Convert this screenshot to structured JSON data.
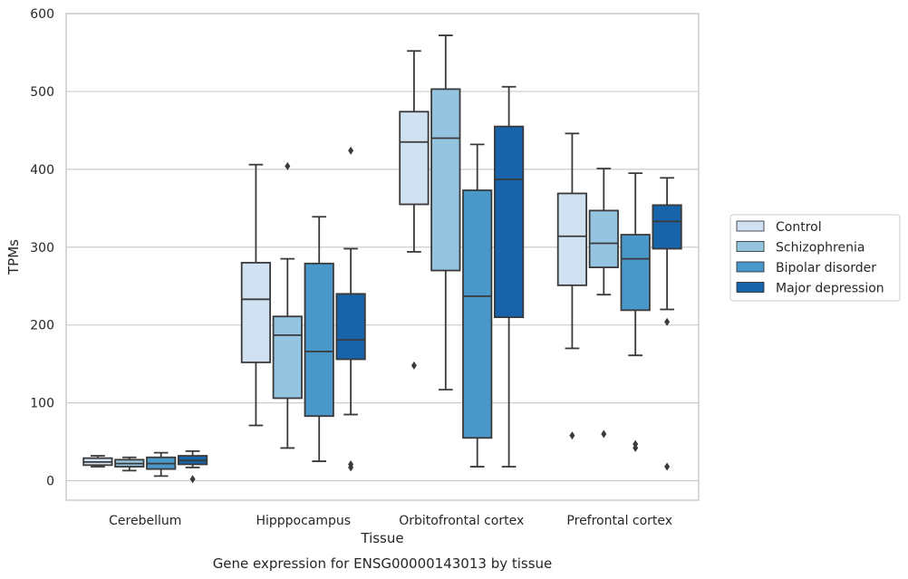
{
  "chart_data": {
    "type": "box",
    "title": "",
    "caption": "Gene expression for ENSG00000143013 by tissue",
    "xlabel": "Tissue",
    "ylabel": "TPMs",
    "ylim": [
      -25,
      600
    ],
    "yticks": [
      0,
      100,
      200,
      300,
      400,
      500,
      600
    ],
    "grid": "horizontal",
    "legend_position": "right",
    "categories": [
      "Cerebellum",
      "Hipppocampus",
      "Orbitofrontal cortex",
      "Prefrontal cortex"
    ],
    "series": [
      {
        "name": "Control",
        "color": "#d0e1f2",
        "boxes": [
          {
            "whislo": 18,
            "q1": 20,
            "med": 24,
            "q3": 29,
            "whishi": 32,
            "fliers": []
          },
          {
            "whislo": 71,
            "q1": 152,
            "med": 233,
            "q3": 280,
            "whishi": 406,
            "fliers": []
          },
          {
            "whislo": 294,
            "q1": 355,
            "med": 435,
            "q3": 474,
            "whishi": 552,
            "fliers": [
              148
            ]
          },
          {
            "whislo": 170,
            "q1": 251,
            "med": 314,
            "q3": 369,
            "whishi": 446,
            "fliers": [
              58
            ]
          }
        ]
      },
      {
        "name": "Schizophrenia",
        "color": "#94c4df",
        "boxes": [
          {
            "whislo": 13,
            "q1": 18,
            "med": 22,
            "q3": 27,
            "whishi": 30,
            "fliers": []
          },
          {
            "whislo": 42,
            "q1": 106,
            "med": 187,
            "q3": 211,
            "whishi": 285,
            "fliers": [
              404
            ]
          },
          {
            "whislo": 117,
            "q1": 270,
            "med": 440,
            "q3": 503,
            "whishi": 572,
            "fliers": []
          },
          {
            "whislo": 239,
            "q1": 274,
            "med": 305,
            "q3": 347,
            "whishi": 401,
            "fliers": [
              60
            ]
          }
        ]
      },
      {
        "name": "Bipolar disorder",
        "color": "#4a98c9",
        "boxes": [
          {
            "whislo": 6,
            "q1": 15,
            "med": 22,
            "q3": 30,
            "whishi": 36,
            "fliers": []
          },
          {
            "whislo": 25,
            "q1": 83,
            "med": 166,
            "q3": 279,
            "whishi": 339,
            "fliers": []
          },
          {
            "whislo": 18,
            "q1": 55,
            "med": 237,
            "q3": 373,
            "whishi": 432,
            "fliers": []
          },
          {
            "whislo": 161,
            "q1": 219,
            "med": 285,
            "q3": 316,
            "whishi": 395,
            "fliers": [
              42,
              47
            ]
          }
        ]
      },
      {
        "name": "Major depression",
        "color": "#1764ab",
        "boxes": [
          {
            "whislo": 17,
            "q1": 21,
            "med": 26,
            "q3": 32,
            "whishi": 38,
            "fliers": [
              2
            ]
          },
          {
            "whislo": 85,
            "q1": 156,
            "med": 181,
            "q3": 240,
            "whishi": 298,
            "fliers": [
              17,
              21,
              424
            ]
          },
          {
            "whislo": 18,
            "q1": 210,
            "med": 387,
            "q3": 455,
            "whishi": 506,
            "fliers": []
          },
          {
            "whislo": 220,
            "q1": 298,
            "med": 333,
            "q3": 354,
            "whishi": 389,
            "fliers": [
              18,
              204
            ]
          }
        ]
      }
    ]
  }
}
